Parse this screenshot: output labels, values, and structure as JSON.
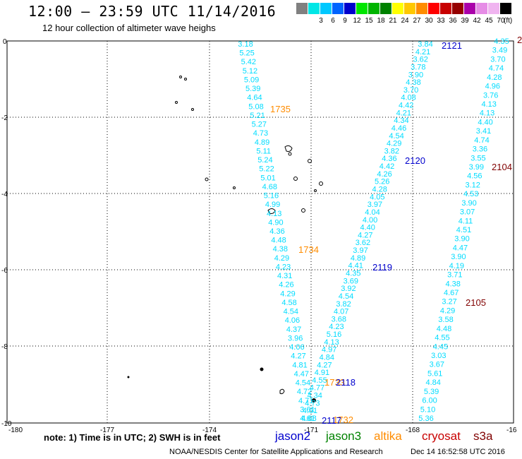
{
  "header": {
    "title": "12:00 — 23:59 UTC 11/14/2016",
    "subtitle": "12 hour collection of altimeter wave heighs"
  },
  "legend": {
    "unit": "(ft)",
    "items": [
      {
        "label": "",
        "color": "#808080"
      },
      {
        "label": "3",
        "color": "#00e6e6"
      },
      {
        "label": "6",
        "color": "#00c8ff"
      },
      {
        "label": "9",
        "color": "#0064ff"
      },
      {
        "label": "12",
        "color": "#0000cd"
      },
      {
        "label": "15",
        "color": "#00e600"
      },
      {
        "label": "18",
        "color": "#00b400"
      },
      {
        "label": "21",
        "color": "#008200"
      },
      {
        "label": "24",
        "color": "#ffff00"
      },
      {
        "label": "27",
        "color": "#ffc800"
      },
      {
        "label": "30",
        "color": "#ff8c00"
      },
      {
        "label": "33",
        "color": "#ff0000"
      },
      {
        "label": "36",
        "color": "#c80000"
      },
      {
        "label": "39",
        "color": "#960000"
      },
      {
        "label": "42",
        "color": "#aa00aa"
      },
      {
        "label": "45",
        "color": "#e68ce6"
      },
      {
        "label": "70",
        "color": "#f0b4f0"
      },
      {
        "label": "",
        "color": "#000000"
      }
    ]
  },
  "axes": {
    "x_ticks": [
      "-180",
      "-177",
      "-174",
      "-171",
      "-168",
      "-16"
    ],
    "y_ticks": [
      "0",
      "-2",
      "-4",
      "-6",
      "-8",
      "-10"
    ]
  },
  "tracks": [
    {
      "name": "jason2-pass-1",
      "values": [
        "3.18",
        "5.25",
        "5.42",
        "5.12",
        "5.09",
        "5.39",
        "4.64",
        "5.08",
        "5.21",
        "5.27",
        "4.73",
        "4.89",
        "5.11",
        "5.24",
        "5.22",
        "5.01",
        "4.68",
        "5.16",
        "4.99",
        "4.13",
        "4.90",
        "4.36",
        "4.48",
        "4.38",
        "4.29",
        "4.23",
        "4.31",
        "4.26",
        "4.29",
        "4.58",
        "4.54",
        "4.06",
        "4.37",
        "3.96",
        "4.06",
        "4.27",
        "4.81",
        "4.47",
        "4.54",
        "4.72",
        "4.71",
        "3.61",
        "4.68"
      ]
    },
    {
      "name": "jason2-pass-2",
      "values": [
        "3.84",
        "4.21",
        "3.62",
        "3.78",
        "3.90",
        "4.38",
        "3.70",
        "4.08",
        "4.42",
        "4.21",
        "4.34",
        "4.46",
        "4.54",
        "4.29",
        "3.82",
        "4.36",
        "4.42",
        "4.26",
        "5.26",
        "4.28",
        "4.05",
        "3.97",
        "4.04",
        "4.00",
        "4.40",
        "4.27",
        "3.62",
        "3.97",
        "4.89",
        "4.41",
        "4.35",
        "3.69",
        "3.92",
        "4.54",
        "3.82",
        "4.07",
        "3.68",
        "4.23",
        "5.16",
        "4.13",
        "4.97",
        "4.84",
        "4.27",
        "4.91",
        "4.55",
        "4.77",
        "4.34",
        "4.73",
        "4.61",
        "4.61"
      ]
    },
    {
      "name": "cryosat-pass",
      "values": [
        "4.35",
        "3.49",
        "3.70",
        "4.74",
        "4.28",
        "4.96",
        "3.76",
        "4.13",
        "4.13",
        "4.40",
        "3.41",
        "4.74",
        "3.36",
        "3.55",
        "3.99",
        "4.56",
        "3.12",
        "4.53",
        "3.90",
        "3.07",
        "4.11",
        "4.51",
        "3.90",
        "4.47",
        "3.90",
        "4.19",
        "3.71",
        "4.38",
        "4.67",
        "3.27",
        "4.29",
        "3.58",
        "4.48",
        "4.55",
        "4.45",
        "3.03",
        "3.67",
        "5.61",
        "4.84",
        "5.39",
        "6.00",
        "5.10",
        "5.36"
      ]
    }
  ],
  "time_labels": [
    {
      "text": "1735",
      "color": "#ff8c00"
    },
    {
      "text": "1734",
      "color": "#ff8c00"
    },
    {
      "text": "1733",
      "color": "#ff8c00"
    },
    {
      "text": "1732",
      "color": "#ff8c00"
    },
    {
      "text": "2121",
      "color": "#0000cd"
    },
    {
      "text": "2120",
      "color": "#0000cd"
    },
    {
      "text": "2119",
      "color": "#0000cd"
    },
    {
      "text": "2118",
      "color": "#0000cd"
    },
    {
      "text": "2117",
      "color": "#0000cd"
    },
    {
      "text": "2104",
      "color": "#800000"
    },
    {
      "text": "2105",
      "color": "#800000"
    },
    {
      "text": "2",
      "color": "#800000"
    }
  ],
  "footer": {
    "note": "note: 1) Time is in UTC; 2) SWH is in feet",
    "satellites": [
      {
        "name": "jason2",
        "color": "#0000cd"
      },
      {
        "name": "jason3",
        "color": "#008200"
      },
      {
        "name": "altika",
        "color": "#ff8c00"
      },
      {
        "name": "cryosat",
        "color": "#c80000"
      },
      {
        "name": "s3a",
        "color": "#800000"
      }
    ],
    "credit": "NOAA/NESDIS Center for Satellite Applications and Research",
    "date": "Dec 14 16:52:58 UTC 2016"
  }
}
